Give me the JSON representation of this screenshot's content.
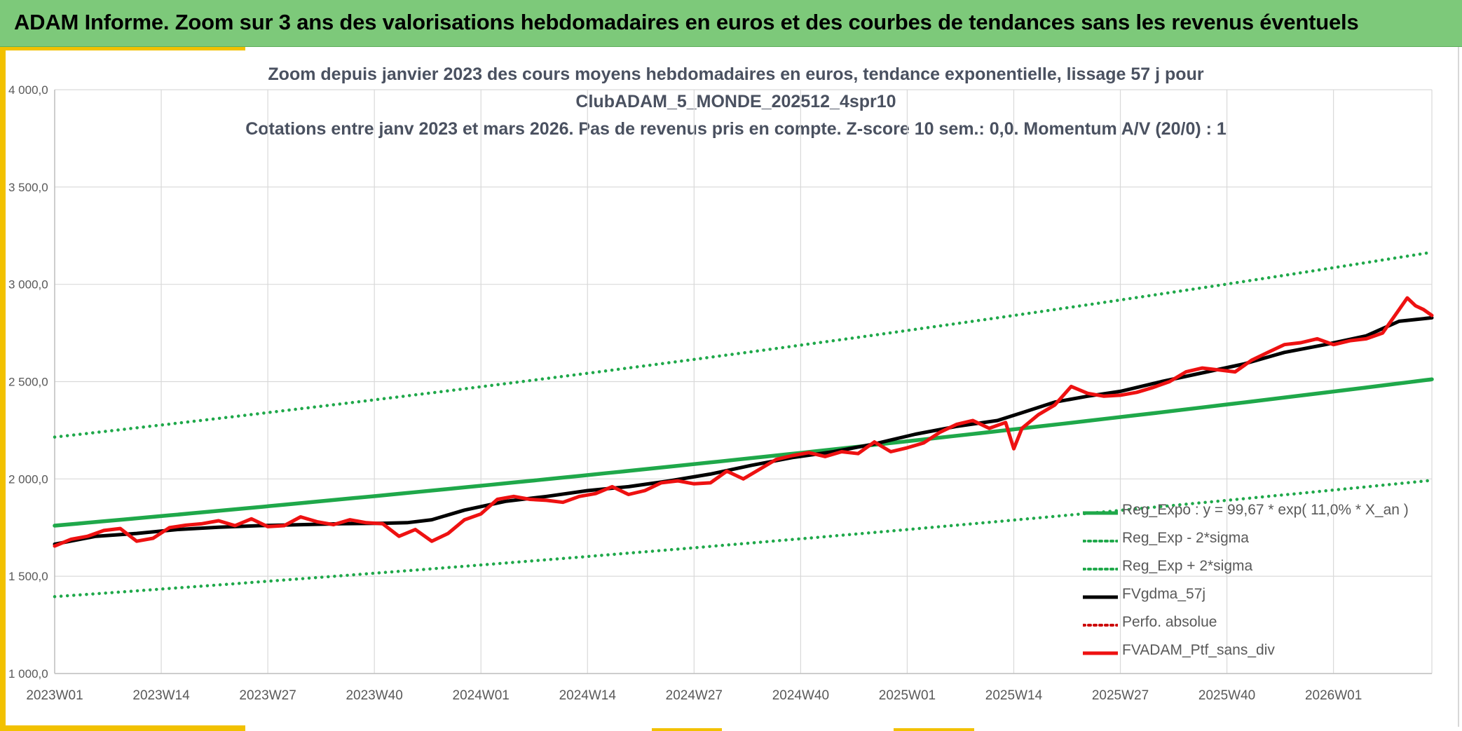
{
  "header": {
    "title": "ADAM Informe. Zoom sur 3 ans des valorisations hebdomadaires en euros et des courbes de tendances sans les revenus éventuels"
  },
  "colors": {
    "banner": "#7dc97a",
    "accent": "#f2c100",
    "trend_green": "#1fa84a",
    "smooth_black": "#000000",
    "portfolio_red": "#ee1111",
    "perf_red": "#cc0000"
  },
  "chart_data": {
    "type": "line",
    "title_lines": [
      "Zoom depuis janvier 2023 des cours moyens hebdomadaires en euros, tendance exponentielle, lissage 57 j pour",
      "ClubADAM_5_MONDE_202512_4spr10",
      "Cotations entre janv 2023 et mars 2026. Pas de revenus pris en compte. Z-score 10 sem.: 0,0. Momentum A/V (20/0) : 1"
    ],
    "xlabel": "",
    "ylabel": "",
    "ylim": [
      1000,
      4000
    ],
    "yticks": [
      1000,
      1500,
      2000,
      2500,
      3000,
      3500,
      4000
    ],
    "ytick_labels": [
      "1 000,0",
      "1 500,0",
      "2 000,0",
      "2 500,0",
      "3 000,0",
      "3 500,0",
      "4 000,0"
    ],
    "x_week_range": [
      0,
      168
    ],
    "xticks": [
      0,
      13,
      26,
      39,
      52,
      65,
      78,
      91,
      104,
      117,
      130,
      143,
      156
    ],
    "xtick_labels": [
      "2023W01",
      "2023W14",
      "2023W27",
      "2023W40",
      "2024W01",
      "2024W14",
      "2024W27",
      "2024W40",
      "2025W01",
      "2025W14",
      "2025W27",
      "2025W40",
      "2026W01"
    ],
    "grid": true,
    "legend_position": "bottom-right",
    "trend_formula": {
      "a": 99.67,
      "rate": 0.11
    },
    "series": [
      {
        "name": "Reg_Expo : y = 99,67 * exp( 11,0% *  X_an )",
        "style": "solid",
        "color": "#1fa84a",
        "x": [
          0,
          168
        ],
        "y": [
          1760,
          2512
        ]
      },
      {
        "name": "Reg_Exp - 2*sigma",
        "style": "dotted",
        "color": "#1fa84a",
        "x": [
          0,
          168
        ],
        "y": [
          1395,
          1993
        ]
      },
      {
        "name": "Reg_Exp + 2*sigma",
        "style": "dotted",
        "color": "#1fa84a",
        "x": [
          0,
          168
        ],
        "y": [
          2215,
          3165
        ]
      },
      {
        "name": "FVgdma_57j",
        "style": "solid",
        "color": "#000000",
        "x": [
          0,
          5,
          10,
          15,
          20,
          25,
          30,
          35,
          40,
          43,
          46,
          50,
          55,
          60,
          65,
          70,
          75,
          80,
          85,
          90,
          95,
          100,
          105,
          110,
          115,
          118,
          122,
          126,
          130,
          135,
          140,
          145,
          150,
          155,
          160,
          164,
          168
        ],
        "y": [
          1665,
          1705,
          1720,
          1740,
          1752,
          1760,
          1765,
          1770,
          1772,
          1775,
          1790,
          1840,
          1885,
          1910,
          1940,
          1960,
          1990,
          2025,
          2070,
          2110,
          2140,
          2180,
          2230,
          2270,
          2300,
          2340,
          2395,
          2425,
          2450,
          2500,
          2545,
          2590,
          2650,
          2690,
          2735,
          2810,
          2828
        ]
      },
      {
        "name": "Perfo. absolue",
        "style": "dotted",
        "color": "#cc0000",
        "x": [],
        "y": []
      },
      {
        "name": "FVADAM_Ptf_sans_div",
        "style": "solid",
        "color": "#ee1111",
        "x": [
          0,
          2,
          4,
          6,
          8,
          10,
          12,
          14,
          16,
          18,
          20,
          22,
          24,
          26,
          28,
          30,
          32,
          34,
          36,
          38,
          40,
          42,
          44,
          46,
          48,
          50,
          52,
          54,
          56,
          58,
          60,
          62,
          64,
          66,
          68,
          70,
          72,
          74,
          76,
          78,
          80,
          82,
          84,
          86,
          88,
          90,
          92,
          94,
          96,
          98,
          100,
          102,
          104,
          106,
          108,
          110,
          112,
          114,
          116,
          117,
          118,
          120,
          122,
          124,
          126,
          128,
          130,
          132,
          134,
          136,
          138,
          140,
          142,
          144,
          146,
          148,
          150,
          152,
          154,
          156,
          158,
          160,
          162,
          164,
          165,
          166,
          167,
          168
        ],
        "y": [
          1655,
          1690,
          1705,
          1735,
          1745,
          1680,
          1695,
          1750,
          1762,
          1770,
          1785,
          1760,
          1795,
          1755,
          1760,
          1805,
          1780,
          1765,
          1790,
          1775,
          1770,
          1705,
          1740,
          1680,
          1720,
          1790,
          1820,
          1895,
          1910,
          1895,
          1890,
          1880,
          1910,
          1925,
          1960,
          1920,
          1940,
          1980,
          1990,
          1975,
          1980,
          2040,
          2000,
          2050,
          2100,
          2120,
          2135,
          2115,
          2140,
          2130,
          2190,
          2140,
          2160,
          2185,
          2240,
          2280,
          2300,
          2260,
          2290,
          2155,
          2260,
          2330,
          2380,
          2475,
          2440,
          2425,
          2430,
          2445,
          2470,
          2500,
          2550,
          2570,
          2560,
          2550,
          2610,
          2650,
          2690,
          2700,
          2720,
          2690,
          2710,
          2720,
          2750,
          2870,
          2930,
          2890,
          2870,
          2840
        ]
      }
    ]
  }
}
